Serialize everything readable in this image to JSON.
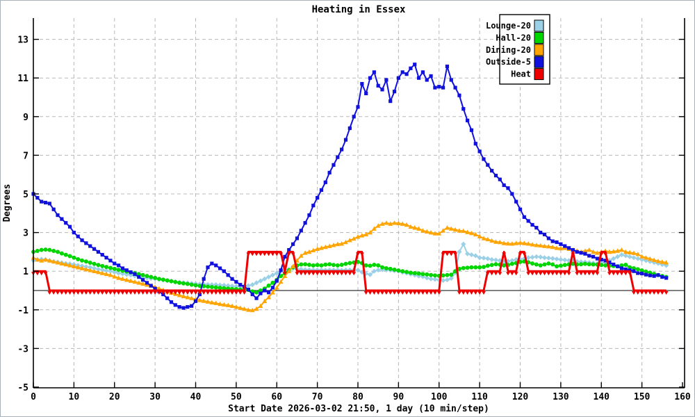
{
  "window": {
    "title": "Heating in Essex"
  },
  "chart_data": {
    "type": "line",
    "title": "Heating in Essex",
    "xlabel": "Start Date 2026-03-02 21:50, 1 day (10 min/step)",
    "ylabel": "Degrees",
    "xlim": [
      0,
      160
    ],
    "ylim": [
      -5,
      14
    ],
    "xticks": [
      0,
      10,
      20,
      30,
      40,
      50,
      60,
      70,
      80,
      90,
      100,
      110,
      120,
      130,
      140,
      150,
      160
    ],
    "yticks": [
      -5,
      -3,
      -1,
      1,
      3,
      5,
      7,
      9,
      11,
      13
    ],
    "grid": true,
    "zero_line": true,
    "legend_position": "top-right",
    "x_step_minutes": 10,
    "series": [
      {
        "name": "Lounge-20",
        "color": "#9bd0e6",
        "marker": "diamond",
        "values": [
          1.55,
          1.6,
          1.62,
          1.6,
          1.55,
          1.5,
          1.47,
          1.44,
          1.4,
          1.38,
          1.35,
          1.3,
          1.27,
          1.23,
          1.2,
          1.15,
          1.1,
          1.07,
          1.03,
          1.0,
          0.95,
          0.9,
          0.87,
          0.83,
          0.8,
          0.75,
          0.72,
          0.68,
          0.65,
          0.62,
          0.6,
          0.57,
          0.54,
          0.51,
          0.48,
          0.45,
          0.43,
          0.41,
          0.39,
          0.37,
          0.35,
          0.33,
          0.32,
          0.31,
          0.3,
          0.3,
          0.28,
          0.27,
          0.25,
          0.23,
          0.22,
          0.21,
          0.2,
          0.25,
          0.3,
          0.4,
          0.5,
          0.6,
          0.7,
          0.8,
          0.9,
          1.0,
          1.05,
          1.1,
          1.15,
          1.1,
          1.1,
          1.08,
          1.07,
          1.06,
          1.06,
          1.06,
          1.05,
          1.06,
          1.06,
          1.06,
          1.05,
          1.06,
          1.06,
          1.06,
          1.05,
          0.95,
          0.88,
          0.82,
          1.0,
          1.06,
          1.08,
          1.06,
          1.05,
          1.02,
          1.0,
          0.94,
          0.9,
          0.85,
          0.8,
          0.75,
          0.72,
          0.65,
          0.6,
          0.58,
          0.55,
          0.52,
          0.55,
          0.63,
          0.92,
          2.0,
          2.4,
          1.9,
          1.85,
          1.8,
          1.7,
          1.68,
          1.65,
          1.6,
          1.58,
          1.55,
          1.5,
          1.52,
          1.55,
          1.6,
          1.62,
          1.65,
          1.7,
          1.72,
          1.75,
          1.73,
          1.7,
          1.68,
          1.66,
          1.63,
          1.6,
          1.58,
          1.55,
          1.52,
          1.5,
          1.48,
          1.47,
          1.45,
          1.42,
          1.4,
          1.42,
          1.45,
          1.55,
          1.65,
          1.75,
          1.85,
          1.8,
          1.75,
          1.7,
          1.65,
          1.6,
          1.55,
          1.5,
          1.45,
          1.4,
          1.35,
          1.3
        ]
      },
      {
        "name": "Hall-20",
        "color": "#00d500",
        "marker": "circle",
        "values": [
          2.0,
          2.05,
          2.1,
          2.12,
          2.1,
          2.05,
          2.0,
          1.92,
          1.85,
          1.78,
          1.7,
          1.62,
          1.55,
          1.5,
          1.44,
          1.38,
          1.32,
          1.27,
          1.22,
          1.17,
          1.12,
          1.07,
          1.02,
          0.98,
          0.94,
          0.9,
          0.85,
          0.8,
          0.75,
          0.7,
          0.65,
          0.6,
          0.56,
          0.52,
          0.48,
          0.44,
          0.4,
          0.37,
          0.34,
          0.3,
          0.27,
          0.24,
          0.22,
          0.2,
          0.18,
          0.16,
          0.14,
          0.12,
          0.1,
          0.08,
          0.07,
          0.05,
          0.04,
          0.03,
          -0.05,
          -0.1,
          0.0,
          0.1,
          0.25,
          0.4,
          0.55,
          0.75,
          0.9,
          1.05,
          1.2,
          1.3,
          1.35,
          1.36,
          1.33,
          1.3,
          1.32,
          1.3,
          1.34,
          1.36,
          1.32,
          1.3,
          1.33,
          1.38,
          1.42,
          1.45,
          1.48,
          1.42,
          1.3,
          1.28,
          1.33,
          1.3,
          1.2,
          1.15,
          1.12,
          1.08,
          1.04,
          1.0,
          0.96,
          0.92,
          0.9,
          0.88,
          0.85,
          0.83,
          0.8,
          0.78,
          0.76,
          0.78,
          0.8,
          0.82,
          1.0,
          1.12,
          1.16,
          1.18,
          1.2,
          1.2,
          1.2,
          1.22,
          1.28,
          1.32,
          1.36,
          1.34,
          1.3,
          1.32,
          1.38,
          1.42,
          1.48,
          1.5,
          1.46,
          1.4,
          1.35,
          1.3,
          1.35,
          1.4,
          1.35,
          1.25,
          1.28,
          1.32,
          1.35,
          1.38,
          1.35,
          1.36,
          1.38,
          1.36,
          1.35,
          1.34,
          1.32,
          1.3,
          1.28,
          1.27,
          1.25,
          1.3,
          1.33,
          1.2,
          1.15,
          1.1,
          1.04,
          0.98,
          0.92,
          0.86,
          0.8,
          0.75,
          0.7
        ]
      },
      {
        "name": "Dining-20",
        "color": "#ffa400",
        "marker": "triangle-up",
        "values": [
          1.7,
          1.6,
          1.55,
          1.6,
          1.55,
          1.5,
          1.45,
          1.4,
          1.35,
          1.3,
          1.25,
          1.2,
          1.15,
          1.1,
          1.05,
          1.0,
          0.95,
          0.9,
          0.85,
          0.8,
          0.72,
          0.65,
          0.6,
          0.55,
          0.5,
          0.45,
          0.4,
          0.35,
          0.3,
          0.25,
          0.18,
          0.1,
          0.02,
          -0.05,
          -0.12,
          -0.18,
          -0.24,
          -0.3,
          -0.35,
          -0.4,
          -0.45,
          -0.5,
          -0.54,
          -0.58,
          -0.62,
          -0.65,
          -0.7,
          -0.73,
          -0.76,
          -0.8,
          -0.85,
          -0.9,
          -0.95,
          -1.0,
          -1.02,
          -0.95,
          -0.8,
          -0.55,
          -0.35,
          -0.1,
          0.15,
          0.45,
          0.75,
          1.0,
          1.25,
          1.55,
          1.8,
          1.95,
          2.0,
          2.08,
          2.15,
          2.2,
          2.25,
          2.3,
          2.35,
          2.4,
          2.42,
          2.5,
          2.6,
          2.68,
          2.78,
          2.85,
          2.9,
          3.0,
          3.2,
          3.35,
          3.45,
          3.5,
          3.45,
          3.5,
          3.48,
          3.45,
          3.4,
          3.3,
          3.25,
          3.2,
          3.1,
          3.05,
          3.0,
          2.95,
          2.95,
          3.1,
          3.25,
          3.2,
          3.15,
          3.1,
          3.08,
          3.02,
          2.97,
          2.9,
          2.8,
          2.7,
          2.65,
          2.58,
          2.52,
          2.5,
          2.45,
          2.43,
          2.42,
          2.45,
          2.47,
          2.45,
          2.42,
          2.38,
          2.35,
          2.33,
          2.3,
          2.28,
          2.25,
          2.2,
          2.18,
          2.2,
          2.15,
          2.1,
          2.05,
          2.0,
          2.05,
          2.1,
          2.0,
          1.95,
          2.0,
          2.05,
          2.0,
          2.02,
          2.05,
          2.1,
          2.0,
          1.97,
          1.94,
          1.88,
          1.76,
          1.7,
          1.64,
          1.58,
          1.52,
          1.48,
          1.45
        ]
      },
      {
        "name": "Outside-5",
        "color": "#1111dd",
        "marker": "square",
        "values": [
          5.0,
          4.8,
          4.6,
          4.55,
          4.5,
          4.2,
          3.9,
          3.7,
          3.5,
          3.3,
          3.0,
          2.8,
          2.6,
          2.45,
          2.3,
          2.15,
          2.0,
          1.85,
          1.7,
          1.55,
          1.4,
          1.3,
          1.15,
          1.05,
          0.95,
          0.85,
          0.7,
          0.55,
          0.4,
          0.25,
          0.1,
          -0.05,
          -0.2,
          -0.4,
          -0.6,
          -0.75,
          -0.85,
          -0.9,
          -0.85,
          -0.8,
          -0.55,
          -0.2,
          0.6,
          1.2,
          1.4,
          1.3,
          1.15,
          1.0,
          0.8,
          0.6,
          0.45,
          0.3,
          0.2,
          0.05,
          -0.2,
          -0.4,
          -0.15,
          0.0,
          -0.1,
          0.15,
          0.5,
          1.05,
          1.75,
          2.1,
          2.4,
          2.7,
          3.1,
          3.5,
          3.9,
          4.4,
          4.8,
          5.2,
          5.6,
          6.1,
          6.5,
          6.9,
          7.3,
          7.8,
          8.4,
          9.0,
          9.5,
          10.7,
          10.2,
          11.0,
          11.3,
          10.6,
          10.4,
          10.9,
          9.8,
          10.3,
          11.0,
          11.3,
          11.2,
          11.5,
          11.7,
          11.0,
          11.3,
          10.9,
          11.1,
          10.5,
          10.55,
          10.5,
          11.6,
          10.9,
          10.5,
          10.1,
          9.4,
          8.8,
          8.3,
          7.6,
          7.2,
          6.8,
          6.5,
          6.2,
          5.95,
          5.75,
          5.45,
          5.3,
          5.0,
          4.6,
          4.2,
          3.8,
          3.6,
          3.4,
          3.25,
          3.0,
          2.9,
          2.7,
          2.55,
          2.5,
          2.4,
          2.3,
          2.2,
          2.1,
          2.0,
          1.95,
          1.9,
          1.8,
          1.75,
          1.65,
          1.6,
          1.55,
          1.45,
          1.35,
          1.25,
          1.15,
          1.1,
          1.05,
          1.0,
          0.9,
          0.88,
          0.82,
          0.78,
          0.75,
          0.8,
          0.7,
          0.65
        ]
      },
      {
        "name": "Heat",
        "color": "#ee0000",
        "marker": "triangle-down",
        "values": [
          1,
          1,
          1,
          1,
          0,
          0,
          0,
          0,
          0,
          0,
          0,
          0,
          0,
          0,
          0,
          0,
          0,
          0,
          0,
          0,
          0,
          0,
          0,
          0,
          0,
          0,
          0,
          0,
          0,
          0,
          0,
          0,
          0,
          0,
          0,
          0,
          0,
          0,
          0,
          0,
          0,
          0,
          0,
          0,
          0,
          0,
          0,
          0,
          0,
          0,
          0,
          0,
          0,
          2,
          2,
          2,
          2,
          2,
          2,
          2,
          2,
          2,
          1,
          2,
          2,
          1,
          1,
          1,
          1,
          1,
          1,
          1,
          1,
          1,
          1,
          1,
          1,
          1,
          1,
          1,
          2,
          2,
          0,
          0,
          0,
          0,
          0,
          0,
          0,
          0,
          0,
          0,
          0,
          0,
          0,
          0,
          0,
          0,
          0,
          0,
          0,
          2,
          2,
          2,
          2,
          0,
          0,
          0,
          0,
          0,
          0,
          0,
          1,
          1,
          1,
          1,
          2,
          1,
          1,
          1,
          2,
          2,
          1,
          1,
          1,
          1,
          1,
          1,
          1,
          1,
          1,
          1,
          1,
          2,
          1,
          1,
          1,
          1,
          1,
          1,
          2,
          2,
          1,
          1,
          1,
          1,
          1,
          1,
          0,
          0,
          0,
          0,
          0,
          0,
          0,
          0,
          0
        ]
      }
    ]
  }
}
